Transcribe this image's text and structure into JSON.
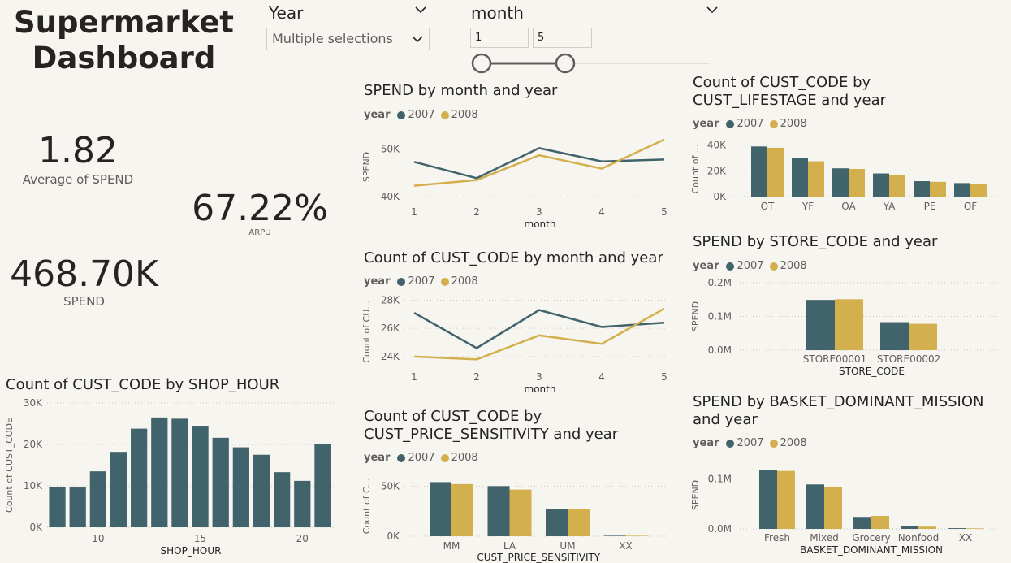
{
  "page_title": "Supermarket Dashboard",
  "colors": {
    "y2007": "#41636b",
    "y2008": "#d4af4d"
  },
  "slicers": {
    "year": {
      "label": "Year",
      "value": "Multiple selections"
    },
    "month": {
      "label": "month",
      "min_value": "1",
      "max_value": "5"
    }
  },
  "kpis": {
    "avg_spend": {
      "value": "1.82",
      "label": "Average of SPEND"
    },
    "arpu": {
      "value": "67.22%",
      "label": "ARPU"
    },
    "spend": {
      "value": "468.70K",
      "label": "SPEND"
    }
  },
  "legend": {
    "title": "year",
    "items": [
      "2007",
      "2008"
    ]
  },
  "chart_data": [
    {
      "id": "shop_hour",
      "type": "bar",
      "title": "Count of CUST_CODE by SHOP_HOUR",
      "xlabel": "SHOP_HOUR",
      "ylabel": "Count of CUST_CODE",
      "x": [
        8,
        9,
        10,
        11,
        12,
        13,
        14,
        15,
        16,
        17,
        18,
        19,
        20,
        21
      ],
      "values": [
        9800,
        9600,
        13500,
        18200,
        23800,
        26500,
        26200,
        24500,
        21600,
        19300,
        17500,
        13300,
        11200,
        20000
      ],
      "xticks": [
        "10",
        "15",
        "20"
      ],
      "yticks": [
        "0K",
        "10K",
        "20K",
        "30K"
      ],
      "ylim": [
        0,
        30000
      ]
    },
    {
      "id": "spend_month",
      "type": "line",
      "title": "SPEND by month and year",
      "xlabel": "month",
      "ylabel": "SPEND",
      "x": [
        "1",
        "2",
        "3",
        "4",
        "5"
      ],
      "series": [
        {
          "name": "2007",
          "values": [
            47300,
            43900,
            50200,
            47400,
            47800
          ]
        },
        {
          "name": "2008",
          "values": [
            42300,
            43500,
            48700,
            45900,
            52000
          ]
        }
      ],
      "yticks": [
        "40K",
        "50K"
      ],
      "ylim": [
        39000,
        53500
      ]
    },
    {
      "id": "cust_month",
      "type": "line",
      "title": "Count of CUST_CODE by month and year",
      "xlabel": "month",
      "ylabel": "Count of CU...",
      "x": [
        "1",
        "2",
        "3",
        "4",
        "5"
      ],
      "series": [
        {
          "name": "2007",
          "values": [
            27100,
            24600,
            27300,
            26100,
            26400
          ]
        },
        {
          "name": "2008",
          "values": [
            24000,
            23800,
            25500,
            24900,
            27400
          ]
        }
      ],
      "yticks": [
        "24K",
        "26K",
        "28K"
      ],
      "ylim": [
        23300,
        28200
      ]
    },
    {
      "id": "price_sens",
      "type": "bar",
      "title": "Count of CUST_CODE by CUST_PRICE_SENSITIVITY and year",
      "xlabel": "CUST_PRICE_SENSITIVITY",
      "ylabel": "Count of C...",
      "categories": [
        "MM",
        "LA",
        "UM",
        "XX"
      ],
      "series": [
        {
          "name": "2007",
          "values": [
            54000,
            50000,
            27000,
            500
          ]
        },
        {
          "name": "2008",
          "values": [
            52000,
            46500,
            27500,
            500
          ]
        }
      ],
      "yticks": [
        "0K",
        "50K"
      ],
      "ylim": [
        0,
        60000
      ]
    },
    {
      "id": "lifestage",
      "type": "bar",
      "title": "Count of CUST_CODE by CUST_LIFESTAGE and year",
      "ylabel": "Count of ...",
      "categories": [
        "OT",
        "YF",
        "OA",
        "YA",
        "PE",
        "OF"
      ],
      "series": [
        {
          "name": "2007",
          "values": [
            39000,
            30000,
            22000,
            18000,
            12000,
            10500
          ]
        },
        {
          "name": "2008",
          "values": [
            38000,
            27500,
            21500,
            16500,
            11500,
            10000
          ]
        }
      ],
      "yticks": [
        "0K",
        "20K",
        "40K"
      ],
      "ylim": [
        0,
        43000
      ]
    },
    {
      "id": "store",
      "type": "bar",
      "title": "SPEND by STORE_CODE and year",
      "xlabel": "STORE_CODE",
      "ylabel": "SPEND",
      "categories": [
        "STORE00001",
        "STORE00002"
      ],
      "series": [
        {
          "name": "2007",
          "values": [
            149000,
            83000
          ]
        },
        {
          "name": "2008",
          "values": [
            151000,
            78000
          ]
        }
      ],
      "yticks": [
        "0.0M",
        "0.1M",
        "0.2M"
      ],
      "ylim": [
        0,
        200000
      ]
    },
    {
      "id": "mission",
      "type": "bar",
      "title": "SPEND by BASKET_DOMINANT_MISSION and year",
      "xlabel": "BASKET_DOMINANT_MISSION",
      "ylabel": "SPEND",
      "categories": [
        "Fresh",
        "Mixed",
        "Grocery",
        "Nonfood",
        "XX"
      ],
      "series": [
        {
          "name": "2007",
          "values": [
            118000,
            89000,
            24000,
            5000,
            1500
          ]
        },
        {
          "name": "2008",
          "values": [
            116000,
            84000,
            26000,
            4500,
            1200
          ]
        }
      ],
      "yticks": [
        "0.0M",
        "0.1M"
      ],
      "ylim": [
        0,
        135000
      ]
    }
  ]
}
